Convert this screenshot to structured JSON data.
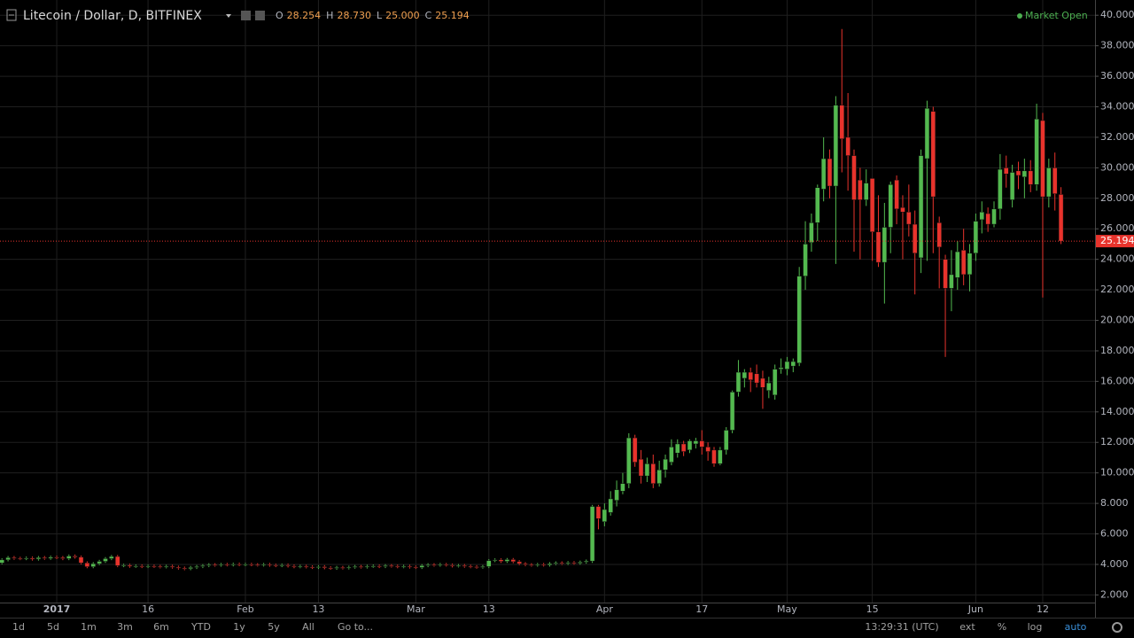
{
  "header": {
    "symbol": "Litecoin / Dollar, D, BITFINEX",
    "ohlc": [
      {
        "key": "O",
        "value": "28.254"
      },
      {
        "key": "H",
        "value": "28.730"
      },
      {
        "key": "L",
        "value": "25.000"
      },
      {
        "key": "C",
        "value": "25.194"
      }
    ],
    "status": "Market Open"
  },
  "chart_data": {
    "type": "candlestick",
    "categories": [
      null,
      null,
      null,
      null,
      null,
      null,
      null,
      null,
      null,
      "2017",
      null,
      null,
      null,
      null,
      null,
      null,
      null,
      null,
      null,
      null,
      null,
      null,
      null,
      null,
      "16",
      null,
      null,
      null,
      null,
      null,
      null,
      null,
      null,
      null,
      null,
      null,
      null,
      null,
      null,
      null,
      "Feb",
      null,
      null,
      null,
      null,
      null,
      null,
      null,
      null,
      null,
      null,
      null,
      "13",
      null,
      null,
      null,
      null,
      null,
      null,
      null,
      null,
      null,
      null,
      null,
      null,
      null,
      null,
      null,
      "Mar",
      null,
      null,
      null,
      null,
      null,
      null,
      null,
      null,
      null,
      null,
      null,
      "13",
      null,
      null,
      null,
      null,
      null,
      null,
      null,
      null,
      null,
      null,
      null,
      null,
      null,
      null,
      null,
      null,
      null,
      null,
      "Apr",
      null,
      null,
      null,
      null,
      null,
      null,
      null,
      null,
      null,
      null,
      null,
      null,
      null,
      null,
      null,
      "17",
      null,
      null,
      null,
      null,
      null,
      null,
      null,
      null,
      null,
      null,
      null,
      null,
      null,
      "May",
      null,
      null,
      null,
      null,
      null,
      null,
      null,
      null,
      null,
      null,
      null,
      null,
      null,
      "15",
      null,
      null,
      null,
      null,
      null,
      null,
      null,
      null,
      null,
      null,
      null,
      null,
      null,
      null,
      null,
      null,
      "Jun",
      null,
      null,
      null,
      null,
      null,
      null,
      null,
      null,
      null,
      null,
      "12",
      null,
      null,
      null
    ],
    "open": [
      4.1,
      4.3,
      4.45,
      4.4,
      4.38,
      4.42,
      4.35,
      4.45,
      4.4,
      4.48,
      4.45,
      4.38,
      4.55,
      4.48,
      4.1,
      3.85,
      4.05,
      4.2,
      4.38,
      4.52,
      3.92,
      3.95,
      3.88,
      3.9,
      3.86,
      3.89,
      3.87,
      3.84,
      3.88,
      3.82,
      3.76,
      3.72,
      3.8,
      3.86,
      3.92,
      3.98,
      3.95,
      4.0,
      3.97,
      4.02,
      3.99,
      4.01,
      3.98,
      3.96,
      4.0,
      3.95,
      3.92,
      3.96,
      3.9,
      3.85,
      3.88,
      3.84,
      3.8,
      3.85,
      3.78,
      3.75,
      3.8,
      3.77,
      3.82,
      3.86,
      3.83,
      3.88,
      3.9,
      3.86,
      3.92,
      3.89,
      3.85,
      3.88,
      3.83,
      3.8,
      3.92,
      3.98,
      3.95,
      4.0,
      3.96,
      3.9,
      3.93,
      3.88,
      3.85,
      3.82,
      3.86,
      4.25,
      4.3,
      4.2,
      4.32,
      4.18,
      4.05,
      3.98,
      3.95,
      4.0,
      3.96,
      4.05,
      4.1,
      4.06,
      4.12,
      4.08,
      4.15,
      4.22,
      7.8,
      6.8,
      7.4,
      8.2,
      8.8,
      9.3,
      12.3,
      10.9,
      9.8,
      10.6,
      9.3,
      10.2,
      10.7,
      11.3,
      11.9,
      11.5,
      11.9,
      12.1,
      11.7,
      11.5,
      10.6,
      11.5,
      12.8,
      15.3,
      16.2,
      16.6,
      16.5,
      16.2,
      15.4,
      15.1,
      16.8,
      16.8,
      17.0,
      17.2,
      22.9,
      25.1,
      26.4,
      28.6,
      30.6,
      28.8,
      34.1,
      32.0,
      30.8,
      29.2,
      27.9,
      29.3,
      25.8,
      23.8,
      26.1,
      29.2,
      27.4,
      27.1,
      26.3,
      24.1,
      30.6,
      33.7,
      26.4,
      24.0,
      22.1,
      22.8,
      24.6,
      23.0,
      24.4,
      26.6,
      27.0,
      26.3,
      27.3,
      30.0,
      27.9,
      29.8,
      29.4,
      29.8,
      28.9,
      33.1,
      28.1,
      30.0,
      28.254
    ],
    "high": [
      4.4,
      4.55,
      4.55,
      4.5,
      4.52,
      4.52,
      4.55,
      4.55,
      4.58,
      4.58,
      4.55,
      4.65,
      4.65,
      4.58,
      4.2,
      4.15,
      4.3,
      4.48,
      4.62,
      4.62,
      4.05,
      4.05,
      4.0,
      4.0,
      3.99,
      3.99,
      3.97,
      3.98,
      3.98,
      3.92,
      3.86,
      3.9,
      3.96,
      4.02,
      4.08,
      4.08,
      4.1,
      4.1,
      4.12,
      4.12,
      4.11,
      4.11,
      4.08,
      4.1,
      4.1,
      4.05,
      4.06,
      4.06,
      4.0,
      3.98,
      3.98,
      3.94,
      3.95,
      3.95,
      3.88,
      3.9,
      3.9,
      3.92,
      3.96,
      3.96,
      3.98,
      4.0,
      4.0,
      4.02,
      4.02,
      3.99,
      3.98,
      3.98,
      3.93,
      4.02,
      4.08,
      4.08,
      4.1,
      4.1,
      4.06,
      4.03,
      4.03,
      3.98,
      3.95,
      3.96,
      4.35,
      4.4,
      4.4,
      4.42,
      4.42,
      4.28,
      4.15,
      4.08,
      4.1,
      4.1,
      4.15,
      4.2,
      4.2,
      4.22,
      4.22,
      4.25,
      4.32,
      7.9,
      7.9,
      8.0,
      8.8,
      9.5,
      10.0,
      12.6,
      12.5,
      11.5,
      11.0,
      11.2,
      10.8,
      11.2,
      12.2,
      12.2,
      12.1,
      12.2,
      12.3,
      12.8,
      12.0,
      11.7,
      11.7,
      13.0,
      15.4,
      17.4,
      16.8,
      16.9,
      17.1,
      16.7,
      16.3,
      17.1,
      17.5,
      17.6,
      17.5,
      23.5,
      26.5,
      27.0,
      28.9,
      32.0,
      31.2,
      34.7,
      39.1,
      34.9,
      31.2,
      30.0,
      29.9,
      29.3,
      28.2,
      27.7,
      29.1,
      29.5,
      28.2,
      28.9,
      27.2,
      31.2,
      34.4,
      34.0,
      26.8,
      24.3,
      24.6,
      25.2,
      26.0,
      25.0,
      27.0,
      27.8,
      27.4,
      27.8,
      30.9,
      30.8,
      30.2,
      30.4,
      30.6,
      30.5,
      34.2,
      33.6,
      30.6,
      31.0,
      28.73
    ],
    "low": [
      4.0,
      4.2,
      4.3,
      4.28,
      4.28,
      4.25,
      4.25,
      4.3,
      4.3,
      4.35,
      4.28,
      4.28,
      4.38,
      4.0,
      3.75,
      3.75,
      3.95,
      4.1,
      4.28,
      3.82,
      3.82,
      3.78,
      3.78,
      3.76,
      3.76,
      3.77,
      3.74,
      3.74,
      3.72,
      3.66,
      3.62,
      3.62,
      3.7,
      3.76,
      3.82,
      3.85,
      3.85,
      3.87,
      3.87,
      3.89,
      3.89,
      3.88,
      3.86,
      3.86,
      3.85,
      3.82,
      3.82,
      3.8,
      3.75,
      3.75,
      3.74,
      3.7,
      3.7,
      3.68,
      3.65,
      3.65,
      3.67,
      3.67,
      3.72,
      3.73,
      3.73,
      3.78,
      3.76,
      3.76,
      3.79,
      3.75,
      3.75,
      3.73,
      3.7,
      3.7,
      3.82,
      3.85,
      3.85,
      3.86,
      3.8,
      3.8,
      3.78,
      3.75,
      3.72,
      3.72,
      3.76,
      4.15,
      4.1,
      4.1,
      4.08,
      3.95,
      3.88,
      3.85,
      3.85,
      3.86,
      3.86,
      3.95,
      3.96,
      3.96,
      3.98,
      3.98,
      4.05,
      4.1,
      6.3,
      6.5,
      7.2,
      7.8,
      8.6,
      9.0,
      10.4,
      9.3,
      9.4,
      9.0,
      9.1,
      9.7,
      10.5,
      11.0,
      11.1,
      11.3,
      11.6,
      11.2,
      10.8,
      10.4,
      10.5,
      11.2,
      12.6,
      15.0,
      15.6,
      15.3,
      15.6,
      14.2,
      14.9,
      14.8,
      16.5,
      16.4,
      16.6,
      17.0,
      22.0,
      24.5,
      25.2,
      27.8,
      28.0,
      23.7,
      29.7,
      28.5,
      24.5,
      24.0,
      27.5,
      23.9,
      23.5,
      21.1,
      24.4,
      26.3,
      24.0,
      25.5,
      21.7,
      23.1,
      23.9,
      24.4,
      22.1,
      17.6,
      20.6,
      22.0,
      22.3,
      21.9,
      23.9,
      25.7,
      25.8,
      26.1,
      26.6,
      28.7,
      27.4,
      28.6,
      28.0,
      28.4,
      28.5,
      21.5,
      27.4,
      27.2,
      25
    ],
    "close": [
      4.3,
      4.45,
      4.4,
      4.38,
      4.42,
      4.35,
      4.45,
      4.4,
      4.48,
      4.45,
      4.38,
      4.55,
      4.48,
      4.1,
      3.85,
      4.05,
      4.2,
      4.38,
      4.52,
      3.92,
      3.95,
      3.88,
      3.9,
      3.86,
      3.89,
      3.87,
      3.84,
      3.88,
      3.82,
      3.76,
      3.72,
      3.8,
      3.86,
      3.92,
      3.98,
      3.95,
      4.0,
      3.97,
      4.02,
      3.99,
      4.01,
      3.98,
      3.96,
      4.0,
      3.95,
      3.92,
      3.96,
      3.9,
      3.85,
      3.88,
      3.84,
      3.8,
      3.85,
      3.78,
      3.75,
      3.8,
      3.77,
      3.82,
      3.86,
      3.83,
      3.88,
      3.9,
      3.86,
      3.92,
      3.89,
      3.85,
      3.88,
      3.83,
      3.8,
      3.92,
      3.98,
      3.95,
      4.0,
      3.96,
      3.9,
      3.93,
      3.88,
      3.85,
      3.82,
      3.86,
      4.25,
      4.3,
      4.2,
      4.32,
      4.18,
      4.05,
      3.98,
      3.95,
      4.0,
      3.96,
      4.05,
      4.1,
      4.06,
      4.12,
      4.08,
      4.15,
      4.22,
      7.8,
      7.0,
      7.6,
      8.3,
      8.9,
      9.3,
      12.3,
      10.7,
      9.8,
      10.6,
      9.3,
      10.2,
      10.9,
      11.7,
      11.9,
      11.4,
      12.1,
      12.1,
      11.7,
      11.4,
      10.6,
      11.5,
      12.8,
      15.3,
      16.6,
      16.6,
      16.1,
      15.9,
      15.6,
      15.9,
      16.8,
      16.9,
      17.3,
      17.3,
      22.9,
      25.0,
      26.4,
      28.7,
      30.6,
      28.8,
      34.1,
      31.9,
      30.8,
      27.9,
      27.9,
      29.0,
      25.8,
      23.8,
      26.1,
      28.9,
      27.3,
      27.1,
      26.3,
      24.4,
      30.8,
      33.9,
      28.1,
      24.8,
      22.1,
      23.0,
      24.5,
      23.0,
      24.4,
      26.5,
      27.1,
      26.3,
      27.3,
      29.9,
      29.6,
      29.7,
      29.5,
      29.8,
      28.9,
      33.2,
      28.1,
      30.0,
      28.3,
      25.194
    ],
    "last_value_label": "25.194",
    "up_color": "#53b94f",
    "down_color": "#e8332c",
    "ylim": [
      1.5,
      41
    ],
    "yticks": [
      {
        "value": 2,
        "label": "2.000"
      },
      {
        "value": 4,
        "label": "4.000"
      },
      {
        "value": 6,
        "label": "6.000"
      },
      {
        "value": 8,
        "label": "8.000"
      },
      {
        "value": 10,
        "label": "10.000"
      },
      {
        "value": 12,
        "label": "12.000"
      },
      {
        "value": 14,
        "label": "14.000"
      },
      {
        "value": 16,
        "label": "16.000"
      },
      {
        "value": 18,
        "label": "18.000"
      },
      {
        "value": 20,
        "label": "20.000"
      },
      {
        "value": 22,
        "label": "22.000"
      },
      {
        "value": 24,
        "label": "24.000"
      },
      {
        "value": 26,
        "label": "26.000"
      },
      {
        "value": 28,
        "label": "28.000"
      },
      {
        "value": 30,
        "label": "30.000"
      },
      {
        "value": 32,
        "label": "32.000"
      },
      {
        "value": 34,
        "label": "34.000"
      },
      {
        "value": 36,
        "label": "36.000"
      },
      {
        "value": 38,
        "label": "38.000"
      },
      {
        "value": 40,
        "label": "40.000"
      }
    ],
    "grid": true,
    "log_scale": false
  },
  "toolbar": {
    "ranges": [
      "1d",
      "5d",
      "1m",
      "3m",
      "6m",
      "YTD",
      "1y",
      "5y",
      "All",
      "Go to..."
    ],
    "time": "13:29:31 (UTC)",
    "options": [
      "ext",
      "%",
      "log",
      "auto"
    ]
  }
}
